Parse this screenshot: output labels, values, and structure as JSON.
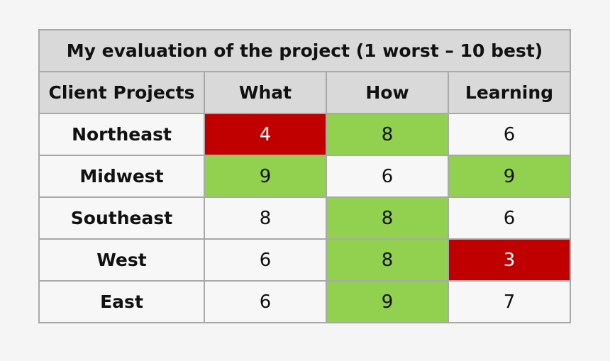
{
  "title": "My evaluation of the project (1 worst – 10 best)",
  "columns": [
    "Client Projects",
    "What",
    "How",
    "Learning"
  ],
  "colors": {
    "good": "#92d050",
    "bad": "#c00000",
    "neutral": "#f7f7f7",
    "header": "#d9d9d9",
    "border": "#a9a9a9"
  },
  "rows": [
    {
      "name": "Northeast",
      "values": [
        "4",
        "8",
        "6"
      ],
      "status": [
        "bad",
        "good",
        "neutral"
      ]
    },
    {
      "name": "Midwest",
      "values": [
        "9",
        "6",
        "9"
      ],
      "status": [
        "good",
        "neutral",
        "good"
      ]
    },
    {
      "name": "Southeast",
      "values": [
        "8",
        "8",
        "6"
      ],
      "status": [
        "neutral",
        "good",
        "neutral"
      ]
    },
    {
      "name": "West",
      "values": [
        "6",
        "8",
        "3"
      ],
      "status": [
        "neutral",
        "good",
        "bad"
      ]
    },
    {
      "name": "East",
      "values": [
        "6",
        "9",
        "7"
      ],
      "status": [
        "neutral",
        "good",
        "neutral"
      ]
    }
  ]
}
